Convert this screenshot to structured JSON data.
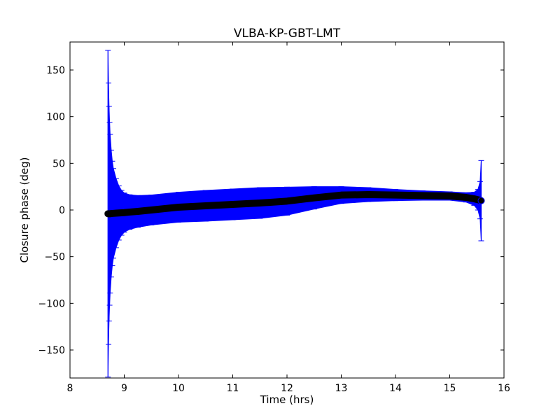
{
  "chart_data": {
    "type": "scatter",
    "title": "VLBA-KP-GBT-LMT",
    "xlabel": "Time (hrs)",
    "ylabel": "Closure phase (deg)",
    "xlim": [
      8,
      16
    ],
    "ylim": [
      -180,
      180
    ],
    "xticks": [
      8,
      9,
      10,
      11,
      12,
      13,
      14,
      15,
      16
    ],
    "yticks": [
      -150,
      -100,
      -50,
      0,
      50,
      100,
      150
    ],
    "ytick_labels": [
      "−150",
      "−100",
      "−50",
      "0",
      "50",
      "100",
      "150"
    ],
    "grid": false,
    "error_bars": true,
    "colors": {
      "marker": "#000000",
      "error_bar": "#0000ff",
      "marker_edge": "#0000ff"
    },
    "points": [
      {
        "x": 8.7,
        "y": -4,
        "err": 175
      },
      {
        "x": 8.71,
        "y": -4,
        "err": 140
      },
      {
        "x": 8.72,
        "y": -4,
        "err": 115
      },
      {
        "x": 8.73,
        "y": -4,
        "err": 98
      },
      {
        "x": 8.74,
        "y": -4,
        "err": 85
      },
      {
        "x": 8.76,
        "y": -3.8,
        "err": 68
      },
      {
        "x": 8.78,
        "y": -3.7,
        "err": 56
      },
      {
        "x": 8.8,
        "y": -3.6,
        "err": 48
      },
      {
        "x": 8.85,
        "y": -3.4,
        "err": 37
      },
      {
        "x": 8.9,
        "y": -3.2,
        "err": 29
      },
      {
        "x": 8.95,
        "y": -3.0,
        "err": 24
      },
      {
        "x": 9.0,
        "y": -2.8,
        "err": 21
      },
      {
        "x": 9.1,
        "y": -2.2,
        "err": 18.5
      },
      {
        "x": 9.25,
        "y": -1.5,
        "err": 17
      },
      {
        "x": 9.5,
        "y": 0,
        "err": 16
      },
      {
        "x": 10.0,
        "y": 3,
        "err": 16
      },
      {
        "x": 10.5,
        "y": 4.5,
        "err": 16.5
      },
      {
        "x": 11.0,
        "y": 6,
        "err": 16.5
      },
      {
        "x": 11.5,
        "y": 7.5,
        "err": 16.5
      },
      {
        "x": 12.0,
        "y": 9.5,
        "err": 15
      },
      {
        "x": 12.5,
        "y": 13,
        "err": 12
      },
      {
        "x": 13.0,
        "y": 16,
        "err": 9
      },
      {
        "x": 13.5,
        "y": 16.5,
        "err": 7.5
      },
      {
        "x": 14.0,
        "y": 16,
        "err": 6
      },
      {
        "x": 14.5,
        "y": 15.5,
        "err": 5
      },
      {
        "x": 15.0,
        "y": 15,
        "err": 4.5
      },
      {
        "x": 15.3,
        "y": 13.5,
        "err": 5
      },
      {
        "x": 15.45,
        "y": 12,
        "err": 7
      },
      {
        "x": 15.52,
        "y": 11,
        "err": 11
      },
      {
        "x": 15.56,
        "y": 10.5,
        "err": 20
      },
      {
        "x": 15.58,
        "y": 10,
        "err": 43
      }
    ]
  }
}
